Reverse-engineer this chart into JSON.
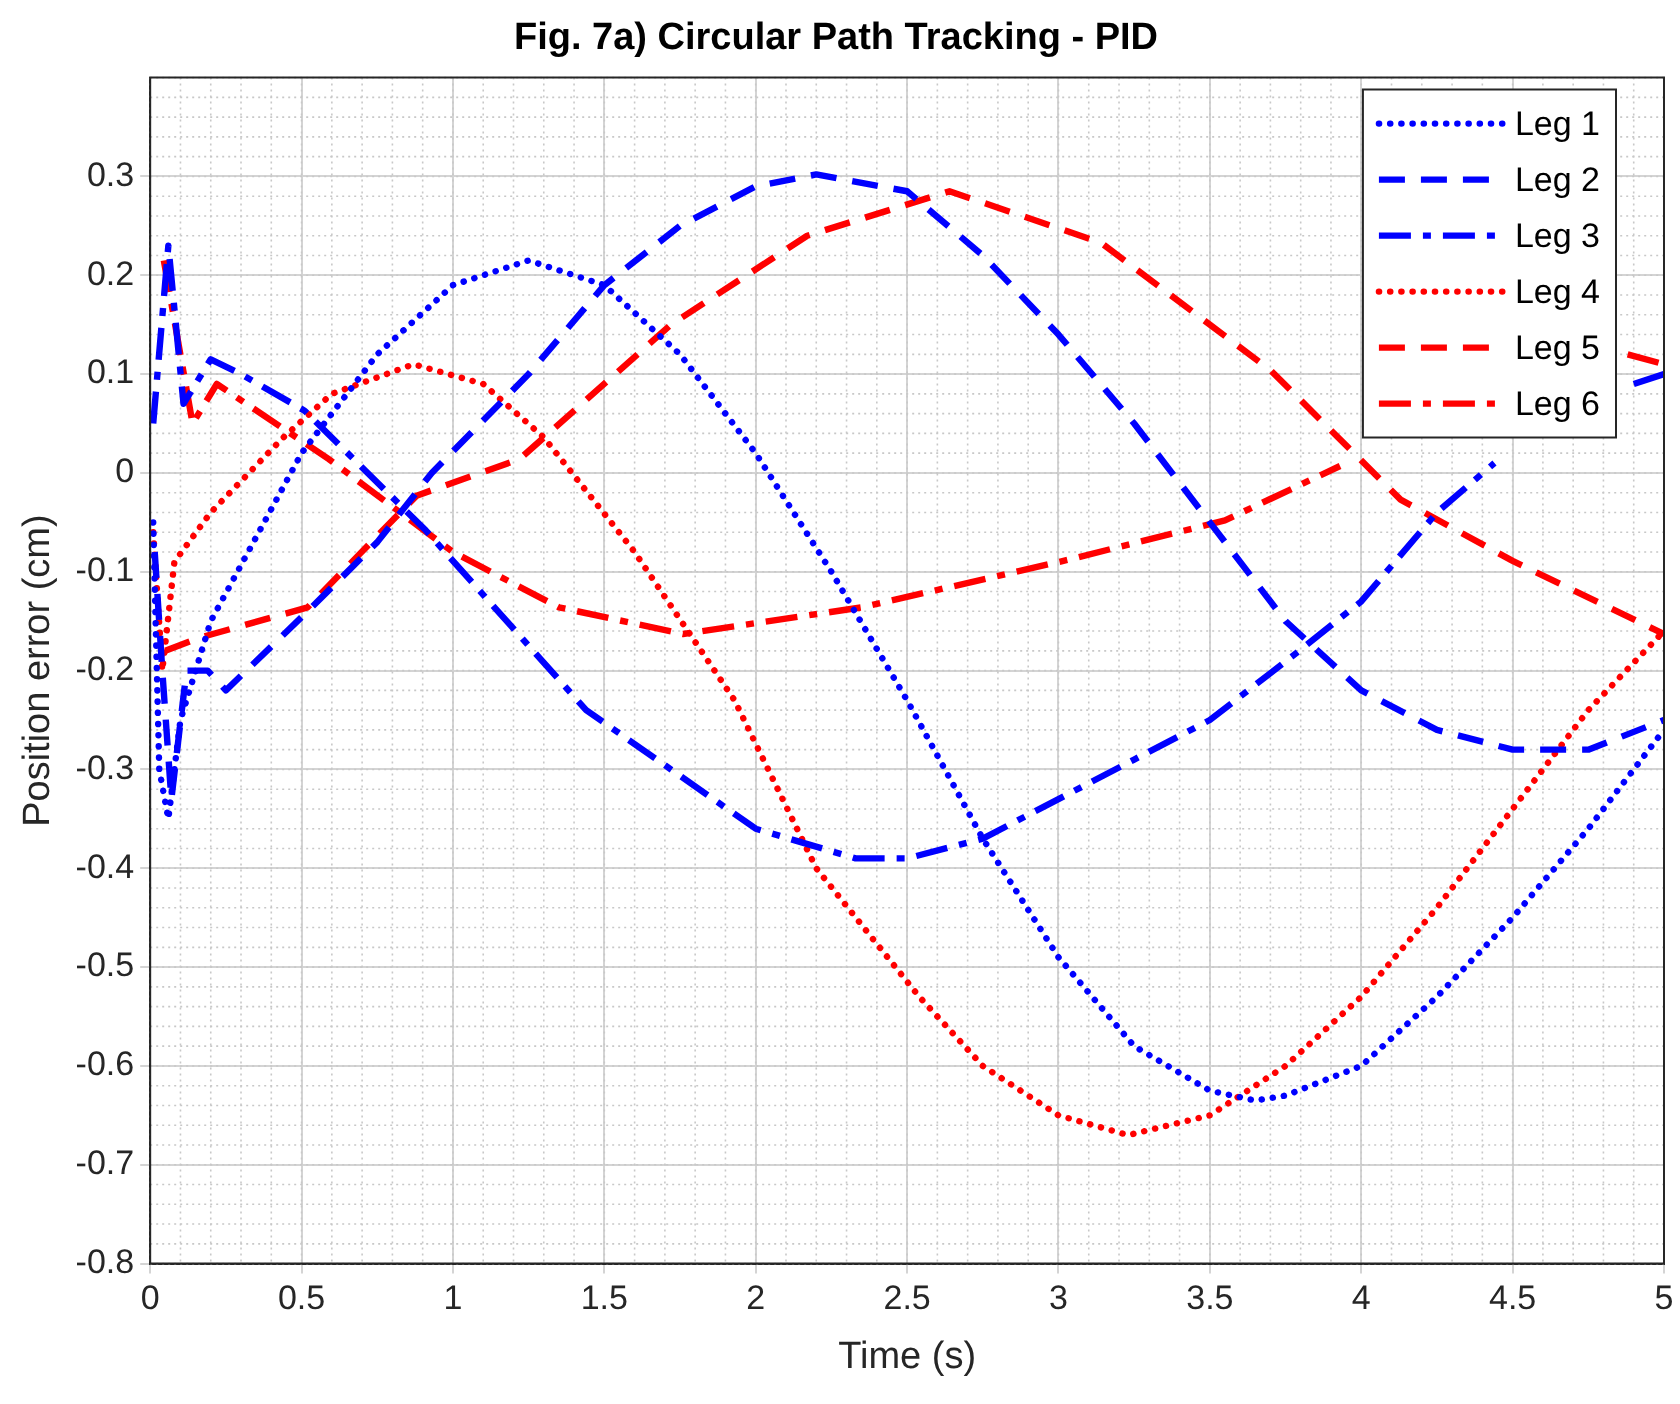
{
  "chart_data": {
    "type": "line",
    "title": "Fig. 7a) Circular Path Tracking - PID",
    "xlabel": "Time (s)",
    "ylabel": "Position error (cm)",
    "xlim": [
      0,
      5
    ],
    "xticks": [
      0,
      0.5,
      1,
      1.5,
      2,
      2.5,
      3,
      3.5,
      4,
      4.5,
      5
    ],
    "ylim": [
      -0.8,
      0.4
    ],
    "yticks": [
      -0.8,
      -0.7,
      -0.6,
      -0.5,
      -0.4,
      -0.3,
      -0.2,
      -0.1,
      0,
      0.1,
      0.2,
      0.3
    ],
    "grid": true,
    "legend": "top right",
    "marker": "none",
    "series": [
      {
        "name": "Leg 1",
        "color": "#0000ff",
        "line_style": "dotted",
        "x": [
          0.01,
          0.03,
          0.06,
          0.1,
          0.2,
          0.5,
          0.75,
          1,
          1.25,
          1.5,
          1.75,
          2,
          2.25,
          2.5,
          2.75,
          3,
          3.25,
          3.5,
          3.65,
          3.75,
          4,
          4.25,
          4.5,
          4.75,
          5
        ],
        "values": [
          -0.05,
          -0.3,
          -0.35,
          -0.25,
          -0.15,
          0.02,
          0.12,
          0.19,
          0.215,
          0.19,
          0.12,
          0.02,
          -0.1,
          -0.23,
          -0.37,
          -0.49,
          -0.58,
          -0.625,
          -0.635,
          -0.63,
          -0.6,
          -0.53,
          -0.45,
          -0.36,
          -0.26
        ]
      },
      {
        "name": "Leg 2",
        "color": "#0000ff",
        "line_style": "dashed",
        "x": [
          0.015,
          0.04,
          0.07,
          0.12,
          0.19,
          0.25,
          0.52,
          0.75,
          0.93,
          1.25,
          1.5,
          1.75,
          2,
          2.2,
          2.5,
          2.75,
          3,
          3.25,
          3.5,
          3.75,
          4,
          4.25,
          4.5,
          4.75,
          5
        ],
        "values": [
          -0.08,
          -0.2,
          -0.33,
          -0.2,
          -0.2,
          -0.22,
          -0.14,
          -0.07,
          0,
          0.1,
          0.19,
          0.25,
          0.29,
          0.302,
          0.285,
          0.22,
          0.14,
          0.05,
          -0.05,
          -0.15,
          -0.22,
          -0.26,
          -0.28,
          -0.28,
          -0.25
        ]
      },
      {
        "name": "Leg 3",
        "color": "#0000ff",
        "line_style": "dashdot",
        "x": [
          0.01,
          0.06,
          0.11,
          0.2,
          0.3,
          0.51,
          0.91,
          1.44,
          2,
          2.33,
          2.5,
          2.75,
          3,
          3.25,
          3.5,
          3.77,
          4,
          4.25,
          4.44,
          4.7,
          4.9,
          5
        ],
        "values": [
          0.05,
          0.23,
          0.07,
          0.115,
          0.1,
          0.063,
          -0.058,
          -0.24,
          -0.36,
          -0.39,
          -0.39,
          -0.37,
          -0.33,
          -0.29,
          -0.25,
          -0.186,
          -0.13,
          -0.04,
          0.01,
          null,
          0.09,
          0.1
        ]
      },
      {
        "name": "Leg 4",
        "color": "#ff0000",
        "line_style": "dotted",
        "x": [
          0.01,
          0.04,
          0.08,
          0.2,
          0.44,
          0.6,
          0.87,
          1.1,
          1.3,
          1.6,
          1.93,
          2.2,
          2.54,
          2.75,
          3,
          3.23,
          3.5,
          3.75,
          4,
          4.25,
          4.5,
          4.75,
          5
        ],
        "values": [
          -0.06,
          -0.2,
          -0.09,
          -0.04,
          0.036,
          0.08,
          0.11,
          0.09,
          0.036,
          -0.08,
          -0.23,
          -0.4,
          -0.53,
          -0.6,
          -0.65,
          -0.67,
          -0.65,
          -0.6,
          -0.53,
          -0.44,
          -0.34,
          -0.24,
          -0.16
        ]
      },
      {
        "name": "Leg 5",
        "color": "#ff0000",
        "line_style": "dashed",
        "x": [
          0.05,
          0.16,
          0.52,
          0.88,
          1.22,
          1.72,
          2.17,
          2.64,
          3.14,
          3.7,
          4.13,
          4.5,
          5
        ],
        "values": [
          -0.18,
          -0.167,
          -0.136,
          -0.023,
          0.014,
          0.15,
          0.24,
          0.285,
          0.233,
          0.104,
          -0.027,
          -0.089,
          -0.163
        ]
      },
      {
        "name": "Leg 6",
        "color": "#ff0000",
        "line_style": "dashdot",
        "x": [
          0.045,
          0.14,
          0.22,
          0.59,
          1,
          1.35,
          1.76,
          2.35,
          3.03,
          3.55,
          3.93,
          4.4,
          4.88,
          5
        ],
        "values": [
          0.215,
          0.05,
          0.09,
          0.014,
          -0.08,
          -0.136,
          -0.163,
          -0.136,
          -0.088,
          -0.048,
          0.007,
          null,
          0.12,
          0.11
        ]
      }
    ]
  }
}
